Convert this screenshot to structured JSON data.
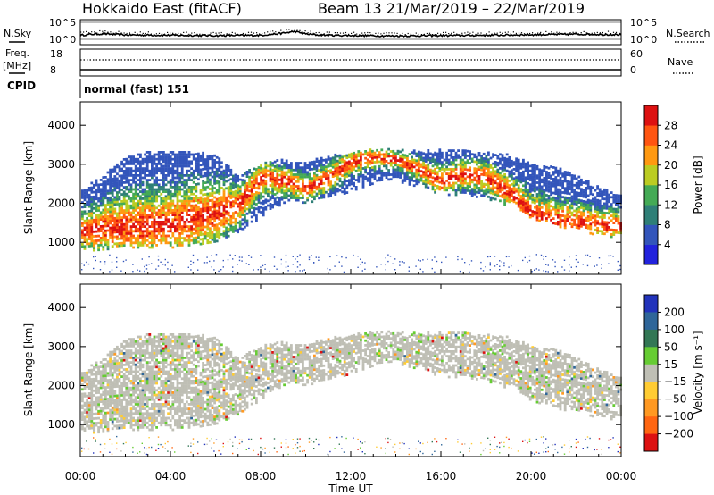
{
  "header": {
    "radar": "Hokkaido East (fitACF)",
    "beam_date": "Beam 13  21/Mar/2019 – 22/Mar/2019"
  },
  "strips": {
    "nsky_label": "N.Sky",
    "nsearch_label": "N.Search",
    "noise_ticks": [
      "10^5",
      "10^0"
    ],
    "freq_label_1": "Freq.",
    "freq_label_2": "[MHz]",
    "freq_ticks": [
      "18",
      "8"
    ],
    "nave_label": "Nave",
    "nave_ticks": [
      "60",
      "0"
    ],
    "cpid_label": "CPID",
    "mode_text": "normal (fast) 151"
  },
  "panels": {
    "ylabel": "Slant Range [km]",
    "xlabel": "Time UT",
    "range_ticks": [
      "1000",
      "2000",
      "3000",
      "4000"
    ],
    "time_ticks": [
      "00:00",
      "04:00",
      "08:00",
      "12:00",
      "16:00",
      "20:00",
      "00:00"
    ]
  },
  "power_scale": {
    "label": "Power [dB]",
    "ticks": [
      "4",
      "8",
      "12",
      "16",
      "20",
      "24",
      "28"
    ],
    "colors": [
      "#2222dd",
      "#3355bb",
      "#2f7f77",
      "#44aa55",
      "#bbcc22",
      "#ff9911",
      "#ff5511",
      "#dd1111"
    ]
  },
  "velocity_scale": {
    "label": "Velocity [m s⁻¹]",
    "ticks": [
      "200",
      "100",
      "50",
      "15",
      "−15",
      "−50",
      "−100",
      "−200"
    ],
    "colors": [
      "#2233bb",
      "#2f6699",
      "#337755",
      "#66cc33",
      "#bfbfb5",
      "#ffcc33",
      "#ff9922",
      "#ff6611",
      "#dd1111"
    ]
  },
  "chart_data": {
    "type": "heatmap",
    "x_label": "Time UT",
    "y_label": "Slant Range [km]",
    "xlim_hours": [
      0,
      24
    ],
    "ylim_km": [
      180,
      4600
    ],
    "noise_profile": {
      "x_hours": [
        0,
        0.5,
        1,
        2,
        4,
        6,
        8,
        8.5,
        9,
        9.5,
        10,
        10.5,
        11,
        14,
        18,
        22,
        24
      ],
      "log10_noise": [
        1.2,
        1.5,
        1.6,
        1.3,
        1.2,
        1.1,
        1.2,
        1.5,
        1.8,
        2.3,
        1.6,
        1.3,
        1.2,
        1.0,
        1.2,
        1.5,
        1.4
      ]
    },
    "scatter_upper_edge": {
      "x_hours": [
        0,
        1,
        2,
        3,
        4,
        5,
        6,
        7,
        8,
        9,
        10,
        11,
        12,
        13,
        14,
        15,
        16,
        17,
        18,
        19,
        20,
        21,
        22,
        23,
        24
      ],
      "range_km": [
        2300,
        2700,
        3200,
        3300,
        3300,
        3300,
        3200,
        2700,
        3000,
        3100,
        3000,
        3200,
        3300,
        3350,
        3350,
        3300,
        3350,
        3350,
        3300,
        3200,
        3000,
        2900,
        2700,
        2400,
        2200
      ]
    },
    "scatter_lower_edge": {
      "x_hours": [
        0,
        1,
        2,
        3,
        4,
        5,
        6,
        7,
        8,
        9,
        10,
        11,
        12,
        13,
        14,
        15,
        16,
        17,
        18,
        19,
        20,
        21,
        22,
        23,
        24
      ],
      "range_km": [
        950,
        1000,
        1050,
        1050,
        1050,
        1050,
        1150,
        1400,
        1850,
        2200,
        2200,
        2300,
        2500,
        2700,
        2750,
        2600,
        2400,
        2400,
        2300,
        2100,
        1800,
        1600,
        1500,
        1350,
        1300
      ]
    },
    "ridge_range_km": {
      "x_hours": [
        0,
        1,
        2,
        3,
        4,
        5,
        6,
        7,
        8,
        9,
        10,
        11,
        12,
        13,
        14,
        15,
        16,
        17,
        18,
        19,
        20,
        21,
        22,
        23,
        24
      ],
      "range_km": [
        1300,
        1400,
        1450,
        1450,
        1500,
        1650,
        1800,
        2000,
        2700,
        2600,
        2400,
        2700,
        3100,
        3200,
        3150,
        2900,
        2600,
        2800,
        2700,
        2300,
        1800,
        1600,
        1550,
        1500,
        1450
      ]
    }
  }
}
